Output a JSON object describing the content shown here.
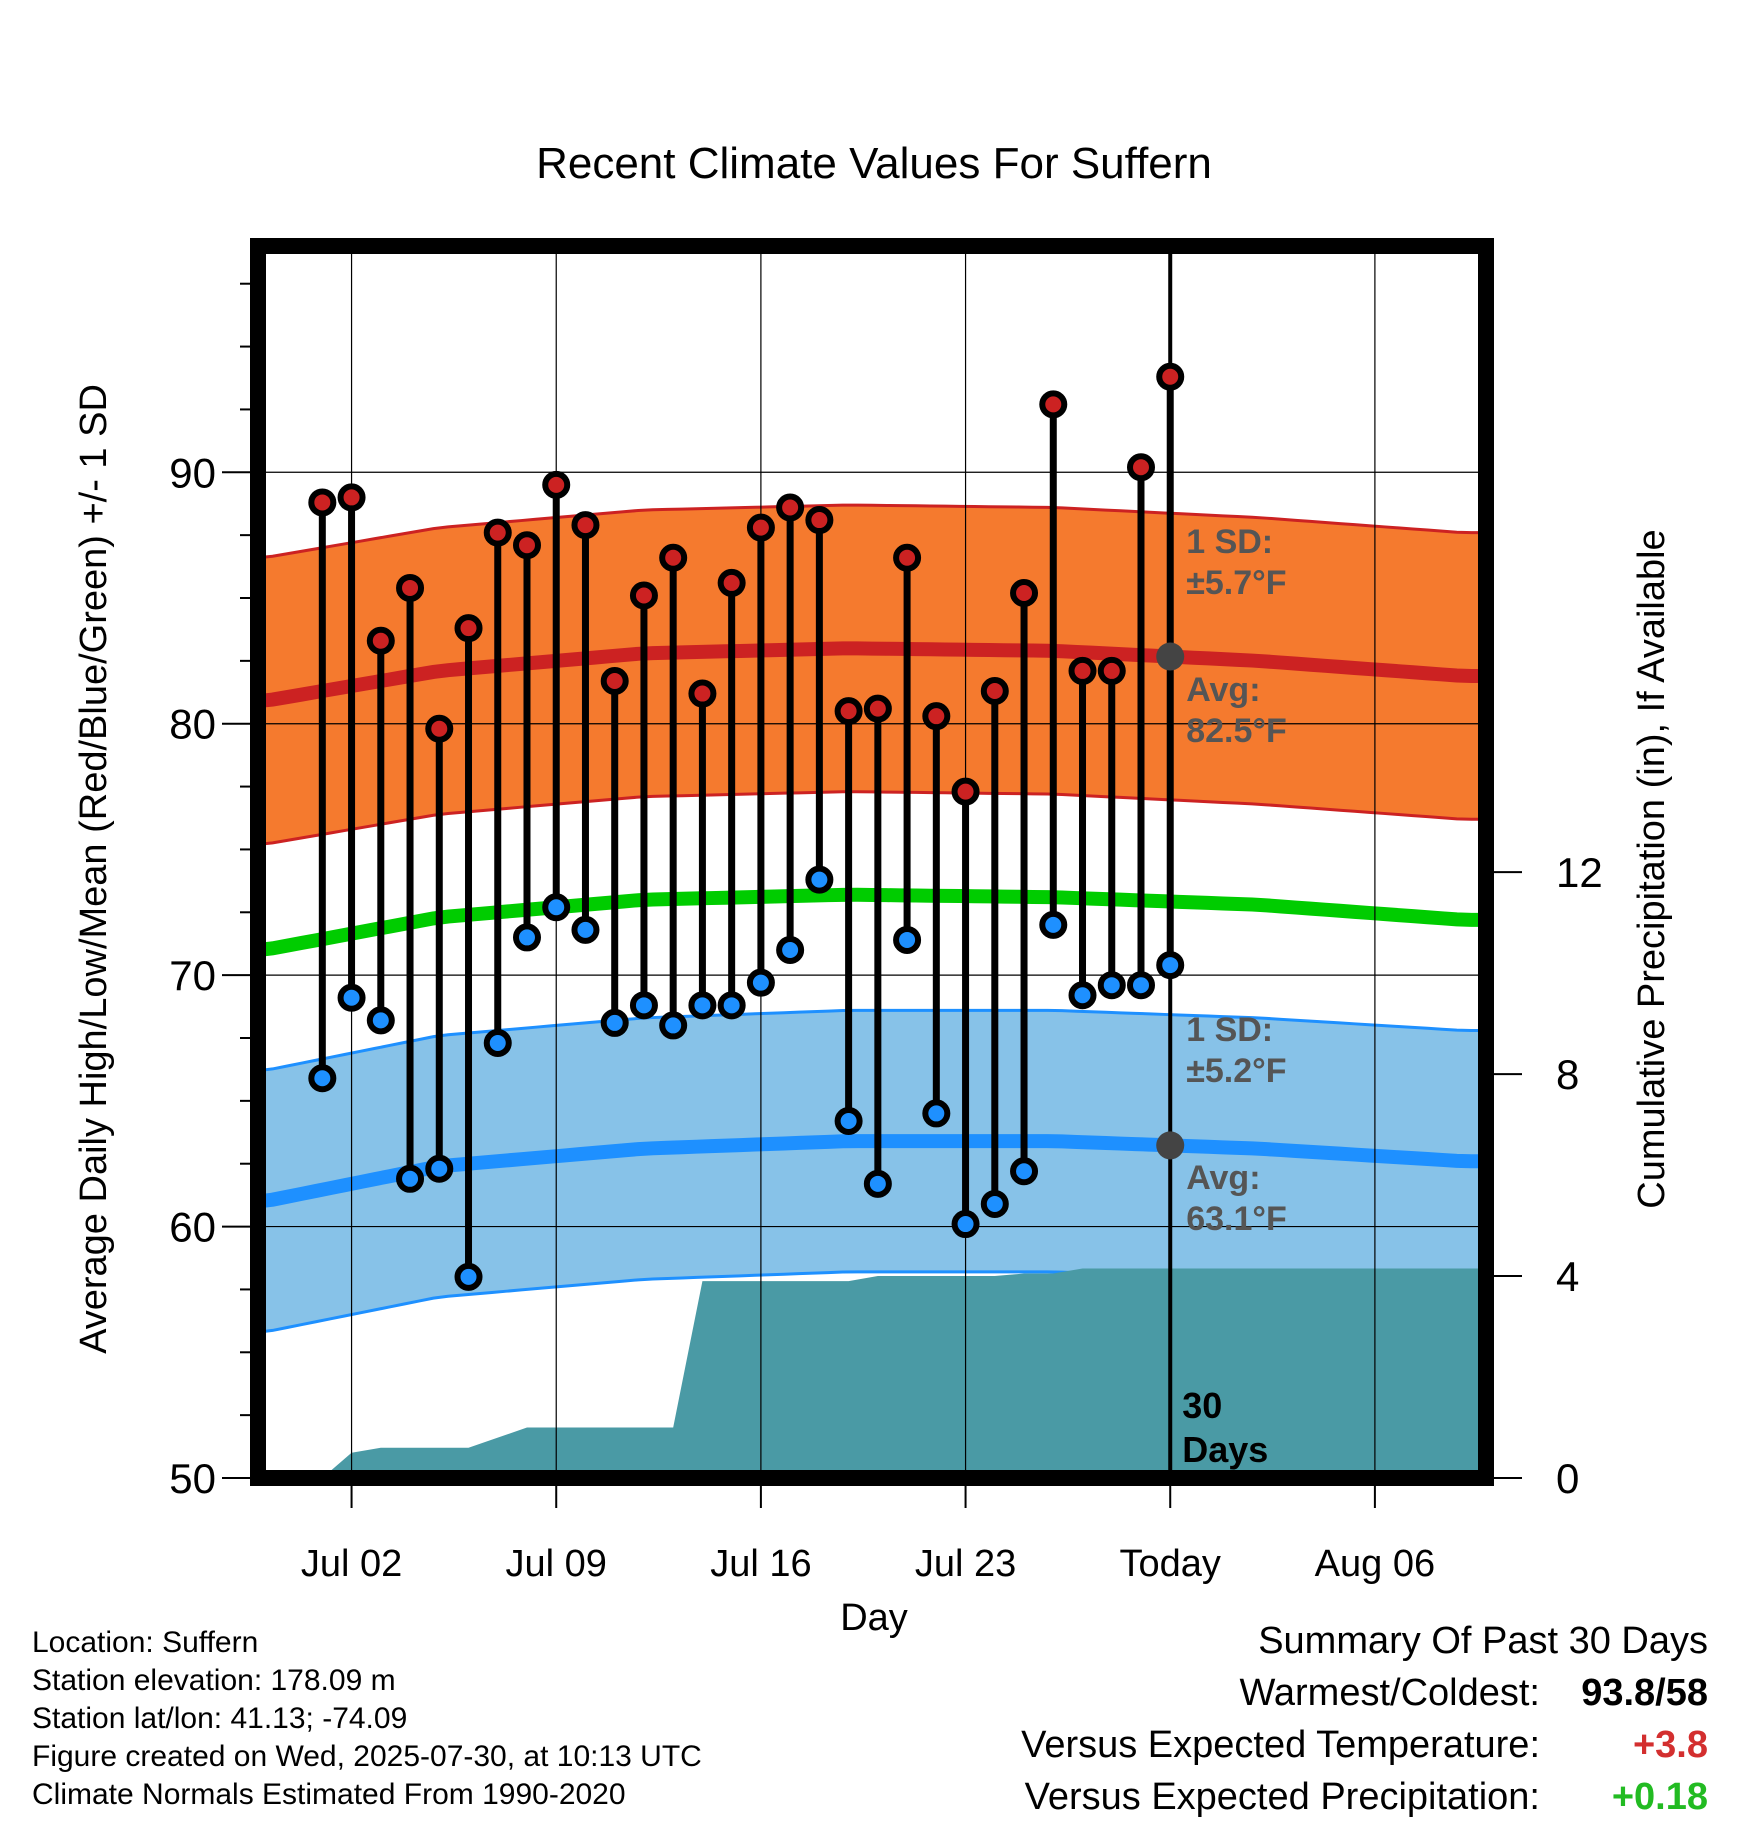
{
  "chart_data": {
    "type": "scatter",
    "title": "Recent Climate Values For Suffern",
    "xlabel": "Day",
    "ylabel": "Average Daily High/Low/Mean (Red/Blue/Green) +/- 1 SD",
    "y2label": "Cumulative Precipitation (in), If Available",
    "ylim": [
      50,
      99
    ],
    "y2lim": [
      0,
      24.4
    ],
    "y_ticks": [
      "50",
      "60",
      "70",
      "80",
      "90"
    ],
    "y2_ticks": [
      "0",
      "4",
      "8",
      "12"
    ],
    "x_ticks": [
      {
        "label": "Jul 02",
        "day": 2
      },
      {
        "label": "Jul 09",
        "day": 9
      },
      {
        "label": "Jul 16",
        "day": 16
      },
      {
        "label": "Jul 23",
        "day": 23
      },
      {
        "label": "Today",
        "day": 30
      },
      {
        "label": "Aug 06",
        "day": 37
      }
    ],
    "xlim_days": [
      -1.2,
      40.8
    ],
    "today_day": 30,
    "days": [
      1,
      2,
      3,
      4,
      5,
      6,
      7,
      8,
      9,
      10,
      11,
      12,
      13,
      14,
      15,
      16,
      17,
      18,
      19,
      20,
      21,
      22,
      23,
      24,
      25,
      26,
      27,
      28,
      29,
      30
    ],
    "highs": [
      88.8,
      89.0,
      83.3,
      85.4,
      79.8,
      83.8,
      87.6,
      87.1,
      89.5,
      87.9,
      81.7,
      85.1,
      86.6,
      81.2,
      85.6,
      87.8,
      88.6,
      88.1,
      80.5,
      80.6,
      86.6,
      80.3,
      77.3,
      81.3,
      85.2,
      92.7,
      82.1,
      82.1,
      90.2,
      93.8
    ],
    "lows": [
      65.9,
      69.1,
      68.2,
      61.9,
      62.3,
      58.0,
      67.3,
      71.5,
      72.7,
      71.8,
      68.1,
      68.8,
      68.0,
      68.8,
      68.8,
      69.7,
      71.0,
      73.8,
      64.2,
      61.7,
      71.4,
      64.5,
      60.1,
      60.9,
      62.2,
      72.0,
      69.2,
      69.6,
      69.6,
      70.4
    ],
    "normal_high": {
      "days": [
        -1,
        5,
        12,
        19,
        26,
        33,
        40
      ],
      "avg": [
        80.9,
        82.1,
        82.8,
        83.0,
        82.9,
        82.5,
        81.9
      ],
      "sd": 5.7
    },
    "normal_low": {
      "days": [
        -1,
        5,
        12,
        19,
        26,
        33,
        40
      ],
      "avg": [
        61.0,
        62.4,
        63.1,
        63.4,
        63.4,
        63.1,
        62.6
      ],
      "sd": 5.2
    },
    "normal_mean": {
      "days": [
        -1,
        5,
        12,
        19,
        26,
        33,
        40
      ],
      "avg": [
        71.0,
        72.3,
        73.0,
        73.2,
        73.1,
        72.8,
        72.2
      ]
    },
    "precip": {
      "days": [
        -1,
        1,
        2,
        3,
        4,
        5,
        6,
        7,
        8,
        9,
        10,
        11,
        12,
        13,
        14,
        15,
        16,
        17,
        18,
        19,
        20,
        21,
        22,
        23,
        24,
        25,
        26,
        27,
        28,
        29,
        30,
        40.8
      ],
      "values": [
        0,
        0,
        0.5,
        0.6,
        0.6,
        0.6,
        0.6,
        0.8,
        1.0,
        1.0,
        1.0,
        1.0,
        1.0,
        1.0,
        3.9,
        3.9,
        3.9,
        3.9,
        3.9,
        3.9,
        4.0,
        4.0,
        4.0,
        4.0,
        4.0,
        4.05,
        4.05,
        4.15,
        4.15,
        4.15,
        4.15,
        4.15
      ]
    },
    "colors": {
      "high": "#cc2222",
      "low": "#1e90ff",
      "mean": "#00cc00",
      "high_band": "#f57a2e",
      "low_band": "#87c2e8",
      "precip": "#4a9aa5"
    }
  },
  "annotations": {
    "high_sd_label": "1 SD:",
    "high_sd_value": "±5.7°F",
    "high_avg_label": "Avg:",
    "high_avg_value": "82.5°F",
    "low_sd_label": "1 SD:",
    "low_sd_value": "±5.2°F",
    "low_avg_label": "Avg:",
    "low_avg_value": "63.1°F",
    "window_count": "30",
    "window_unit": "Days"
  },
  "info": {
    "location": "Location: Suffern",
    "elevation": "Station elevation: 178.09 m",
    "latlon": "Station lat/lon: 41.13; -74.09",
    "created": "Figure created on Wed, 2025-07-30, at 10:13 UTC",
    "normals": "Climate Normals Estimated From 1990-2020"
  },
  "summary": {
    "title": "Summary Of Past 30 Days",
    "warmest_label": "Warmest/Coldest:",
    "warmest_value": "93.8",
    "coldest_value": "/58",
    "temp_label": "Versus Expected Temperature:",
    "temp_value": "+3.8",
    "temp_color": "#d32f2f",
    "precip_label": "Versus Expected Precipitation:",
    "precip_value": "+0.18",
    "precip_color": "#22bb22"
  }
}
